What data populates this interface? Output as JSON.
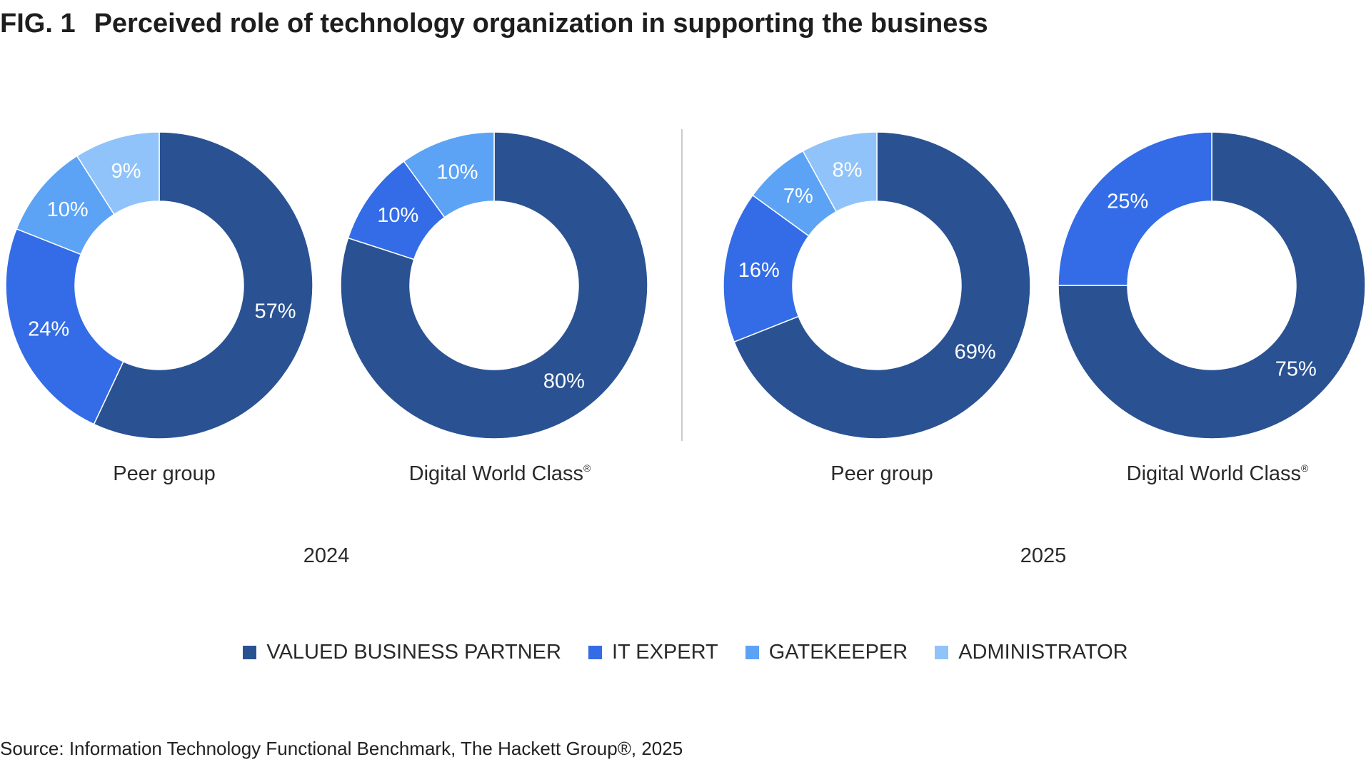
{
  "title": {
    "fig": "FIG. 1",
    "text": "Perceived role of technology organization in supporting the business"
  },
  "source": "Source: Information Technology Functional Benchmark, The Hackett Group®, 2025",
  "chart_data": {
    "type": "pie",
    "variant": "donut",
    "title": "Perceived role of technology organization in supporting the business",
    "legend_position": "bottom",
    "legend": [
      "VALUED BUSINESS PARTNER",
      "IT EXPERT",
      "GATEKEEPER",
      "ADMINISTRATOR"
    ],
    "colors": [
      "#2a5293",
      "#336ce6",
      "#5ca3f5",
      "#90c3fa"
    ],
    "groups": [
      {
        "year": "2024",
        "charts": [
          {
            "label": "Peer group",
            "values": [
              57,
              24,
              10,
              9
            ]
          },
          {
            "label": "Digital World Class®",
            "values": [
              80,
              10,
              10,
              0
            ]
          }
        ]
      },
      {
        "year": "2025",
        "charts": [
          {
            "label": "Peer group",
            "values": [
              69,
              16,
              7,
              8
            ]
          },
          {
            "label": "Digital World Class®",
            "values": [
              75,
              25,
              0,
              0
            ]
          }
        ]
      }
    ]
  }
}
